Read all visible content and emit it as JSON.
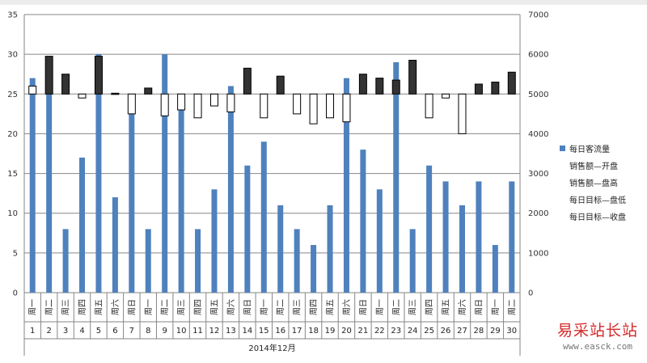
{
  "chart_data": {
    "type": "bar-stock-combo",
    "categories": [
      "1",
      "2",
      "3",
      "4",
      "5",
      "6",
      "7",
      "8",
      "9",
      "10",
      "11",
      "12",
      "13",
      "14",
      "15",
      "16",
      "17",
      "18",
      "19",
      "20",
      "21",
      "22",
      "23",
      "24",
      "25",
      "26",
      "27",
      "28",
      "29",
      "30"
    ],
    "weekdays": [
      "周一",
      "周二",
      "周三",
      "周四",
      "周五",
      "周六",
      "周日",
      "周一",
      "周二",
      "周三",
      "周四",
      "周五",
      "周六",
      "周日",
      "周一",
      "周二",
      "周三",
      "周四",
      "周五",
      "周六",
      "周日",
      "周一",
      "周二",
      "周三",
      "周四",
      "周五",
      "周六",
      "周日",
      "周一",
      "周二"
    ],
    "xgroup_label": "2014年12月",
    "left_axis": {
      "min": 0,
      "max": 35,
      "step": 5,
      "ticks": [
        "0",
        "5",
        "10",
        "15",
        "20",
        "25",
        "30",
        "35"
      ]
    },
    "right_axis": {
      "min": 0,
      "max": 7000,
      "step": 1000,
      "ticks": [
        "0",
        "1000",
        "2000",
        "3000",
        "4000",
        "5000",
        "6000",
        "7000"
      ]
    },
    "legend_placement": "right",
    "legend": [
      "每日客流量",
      "销售额—开盘",
      "销售额—盘高",
      "每日目标—盘低",
      "每日目标—收盘"
    ],
    "colors": {
      "bar": "#4f81bd",
      "up": "#ffffff",
      "down": "#333333",
      "grid": "#868686",
      "axis": "#868686"
    },
    "series": [
      {
        "name": "每日客流量",
        "axis": "left",
        "values": [
          27,
          25,
          8,
          17,
          30,
          12,
          23,
          8,
          30,
          23,
          8,
          13,
          26,
          16,
          19,
          11,
          8,
          6,
          11,
          27,
          18,
          13,
          29,
          8,
          16,
          14,
          11,
          14,
          6,
          14
        ]
      },
      {
        "name": "candles",
        "axis": "right",
        "open": [
          5200,
          5000,
          5000,
          5000,
          5000,
          5000,
          5000,
          5000,
          5000,
          5000,
          5000,
          5000,
          5000,
          5000,
          5000,
          5000,
          5000,
          5000,
          5000,
          5000,
          5000,
          5000,
          5000,
          5000,
          5000,
          5000,
          5000,
          5000,
          5000,
          5000
        ],
        "close": [
          5000,
          5950,
          5500,
          4900,
          5950,
          5020,
          4500,
          5150,
          4450,
          4600,
          4400,
          4700,
          4550,
          5650,
          4400,
          5450,
          4500,
          4250,
          4400,
          4300,
          5500,
          5400,
          5350,
          5850,
          4400,
          4900,
          4000,
          5250,
          5300,
          5550
        ]
      }
    ]
  },
  "watermark": {
    "cn": "易采站长站",
    "url": "www.easck.com"
  }
}
